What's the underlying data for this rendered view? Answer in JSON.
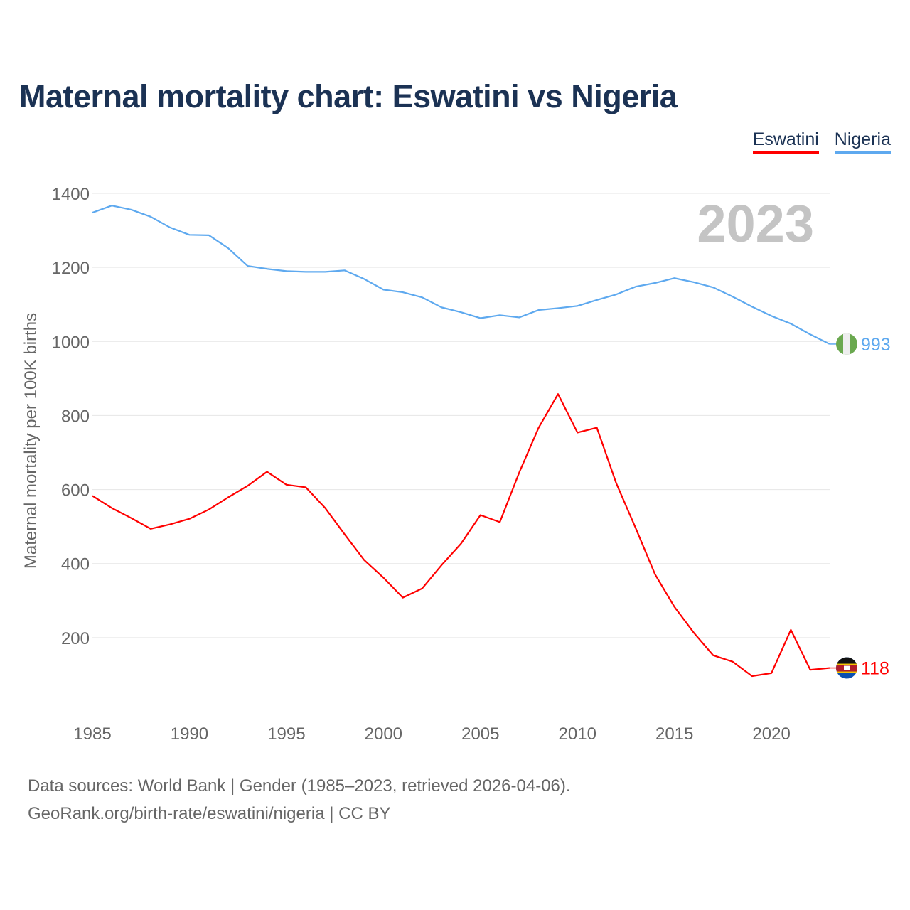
{
  "title": "Maternal mortality chart: Eswatini vs Nigeria",
  "year_label": "2023",
  "source_line1": "Data sources: World Bank | Gender (1985–2023, retrieved 2026-04-06).",
  "source_line2": "GeoRank.org/birth-rate/eswatini/nigeria | CC BY",
  "chart_data": {
    "type": "line",
    "title": "Maternal mortality chart: Eswatini vs Nigeria",
    "xlabel": "",
    "ylabel": "Maternal mortality per 100K births",
    "xlim": [
      1985,
      2023
    ],
    "ylim": [
      0,
      1400
    ],
    "x_ticks": [
      1985,
      1990,
      1995,
      2000,
      2005,
      2010,
      2015,
      2020
    ],
    "y_ticks": [
      200,
      400,
      600,
      800,
      1000,
      1200,
      1400
    ],
    "grid": true,
    "legend_position": "top-right",
    "x": [
      1985,
      1986,
      1987,
      1988,
      1989,
      1990,
      1991,
      1992,
      1993,
      1994,
      1995,
      1996,
      1997,
      1998,
      1999,
      2000,
      2001,
      2002,
      2003,
      2004,
      2005,
      2006,
      2007,
      2008,
      2009,
      2010,
      2011,
      2012,
      2013,
      2014,
      2015,
      2016,
      2017,
      2018,
      2019,
      2020,
      2021,
      2022,
      2023
    ],
    "series": [
      {
        "name": "Eswatini",
        "color": "#ff0000",
        "end_label": "118",
        "values": [
          583,
          550,
          523,
          494,
          506,
          521,
          546,
          579,
          610,
          648,
          613,
          606,
          550,
          479,
          410,
          362,
          308,
          333,
          396,
          454,
          531,
          512,
          646,
          767,
          858,
          754,
          767,
          617,
          496,
          371,
          283,
          213,
          152,
          135,
          96,
          104,
          221,
          113,
          118
        ]
      },
      {
        "name": "Nigeria",
        "color": "#5ea9ef",
        "end_label": "993",
        "values": [
          1348,
          1367,
          1356,
          1337,
          1308,
          1288,
          1287,
          1252,
          1204,
          1196,
          1190,
          1188,
          1188,
          1192,
          1169,
          1140,
          1133,
          1119,
          1092,
          1079,
          1063,
          1071,
          1065,
          1085,
          1090,
          1096,
          1112,
          1127,
          1148,
          1158,
          1171,
          1160,
          1146,
          1121,
          1094,
          1069,
          1048,
          1019,
          993
        ]
      }
    ]
  }
}
